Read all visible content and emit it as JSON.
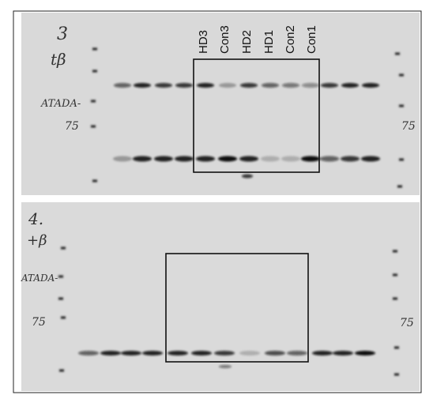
{
  "lanes": [
    "HD3",
    "Con3",
    "HD2",
    "HD1",
    "Con2",
    "Con1"
  ],
  "panels": [
    {
      "number": "3",
      "marker_labels": [
        "tβ",
        "ATADA-",
        "75"
      ],
      "right_label": "75"
    },
    {
      "number": "4.",
      "marker_labels": [
        "+β",
        "ATADA-",
        "75"
      ],
      "right_label": "75"
    }
  ]
}
